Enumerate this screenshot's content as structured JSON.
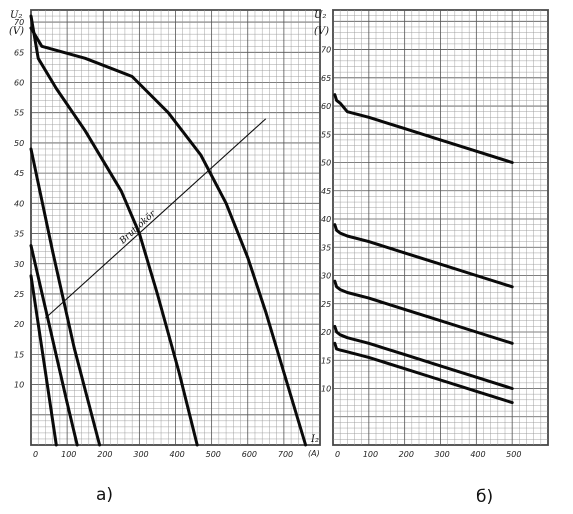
{
  "chart_data": [
    {
      "type": "line",
      "caption": "а)",
      "ylabel": "U₂",
      "ylabel_unit": "(V)",
      "xlabel": "I₂",
      "xlabel_unit": "(A)",
      "xlim": [
        0,
        800
      ],
      "ylim": [
        0,
        72
      ],
      "x_ticks": [
        0,
        100,
        200,
        300,
        400,
        500,
        600,
        700
      ],
      "x_tick_labels": [
        "0",
        "100",
        "200",
        "300",
        "400",
        "500",
        "600",
        "700"
      ],
      "y_ticks": [
        10,
        15,
        20,
        25,
        30,
        35,
        40,
        45,
        50,
        55,
        60,
        65,
        70
      ],
      "grid": true,
      "series": [
        {
          "x": [
            0,
            40,
            70
          ],
          "y": [
            28,
            12,
            0
          ]
        },
        {
          "x": [
            0,
            50,
            100,
            128
          ],
          "y": [
            33,
            20,
            7,
            0
          ]
        },
        {
          "x": [
            0,
            60,
            120,
            190
          ],
          "y": [
            49,
            32,
            16,
            0
          ]
        },
        {
          "x": [
            0,
            20,
            70,
            150,
            250,
            300,
            350,
            410,
            460
          ],
          "y": [
            71,
            64,
            59,
            52,
            42,
            35,
            25,
            12,
            0
          ]
        },
        {
          "x": [
            0,
            30,
            150,
            280,
            380,
            470,
            540,
            600,
            650,
            700,
            760
          ],
          "y": [
            69,
            66,
            64,
            61,
            55,
            48,
            40,
            31,
            22,
            12,
            0
          ]
        }
      ],
      "annotation": {
        "text": "Bruttokör",
        "x": [
          40,
          650
        ],
        "y": [
          21,
          54
        ]
      }
    },
    {
      "type": "line",
      "caption": "б)",
      "ylabel": "U₂",
      "ylabel_unit": "(V)",
      "xlim": [
        0,
        600
      ],
      "ylim": [
        0,
        77
      ],
      "x_ticks": [
        0,
        100,
        200,
        300,
        400,
        500
      ],
      "x_tick_labels": [
        "0",
        "100",
        "200",
        "300",
        "400",
        "500"
      ],
      "y_ticks": [
        10,
        15,
        20,
        25,
        30,
        35,
        40,
        45,
        50,
        55,
        60,
        65,
        70
      ],
      "grid": true,
      "series": [
        {
          "x": [
            5,
            10,
            20,
            40,
            100,
            200,
            300,
            400,
            500
          ],
          "y": [
            62,
            61,
            60.5,
            59,
            58,
            56,
            54,
            52,
            50
          ]
        },
        {
          "x": [
            5,
            10,
            20,
            40,
            100,
            200,
            300,
            400,
            500
          ],
          "y": [
            39,
            38,
            37.5,
            37,
            36,
            34,
            32,
            30,
            28
          ]
        },
        {
          "x": [
            5,
            10,
            20,
            40,
            100,
            200,
            300,
            400,
            500
          ],
          "y": [
            29,
            28,
            27.5,
            27,
            26,
            24,
            22,
            20,
            18
          ]
        },
        {
          "x": [
            5,
            10,
            20,
            40,
            100,
            200,
            300,
            400,
            500
          ],
          "y": [
            21,
            20,
            19.5,
            19,
            18,
            16,
            14,
            12,
            10
          ]
        },
        {
          "x": [
            5,
            10,
            20,
            40,
            100,
            200,
            300,
            400,
            500
          ],
          "y": [
            18,
            17,
            16.8,
            16.5,
            15.5,
            13.5,
            11.5,
            9.5,
            7.5
          ]
        }
      ]
    }
  ]
}
